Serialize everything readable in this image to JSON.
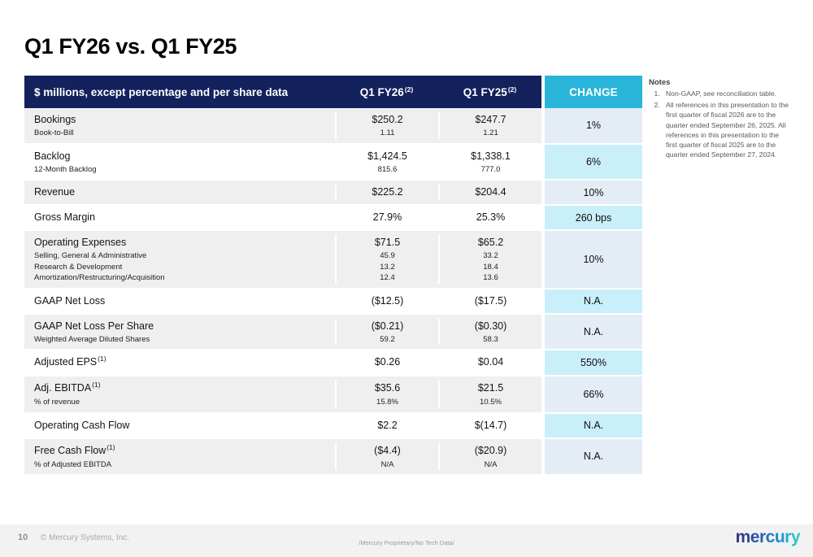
{
  "slide": {
    "title": "Q1 FY26 vs. Q1 FY25",
    "page_number": "10",
    "copyright": "© Mercury Systems, Inc.",
    "classification": "/Mercury Proprietary/No Tech Data/",
    "logo_text": "mercury"
  },
  "colors": {
    "header_navy": "#13215c",
    "accent_cyan": "#29b5d9",
    "change_cyan_cell": "#c9effa",
    "change_light_cell": "#e4ecf5",
    "row_gray": "#f0eff0",
    "footer_band": "#f2f2f2"
  },
  "table": {
    "header": {
      "label": "$ millions, except percentage and per share data",
      "col1": "Q1 FY26",
      "col1_sup": "(2)",
      "col2": "Q1 FY25",
      "col2_sup": "(2)",
      "change": "CHANGE"
    },
    "rows": [
      {
        "label": "Bookings",
        "sup": "",
        "fy26": "$250.2",
        "fy25": "$247.7",
        "change": "1%",
        "row_shade": "gray",
        "change_shade": "light",
        "subs": [
          {
            "label": "Book-to-Bill",
            "fy26": "1.11",
            "fy25": "1.21"
          }
        ]
      },
      {
        "label": "Backlog",
        "sup": "",
        "fy26": "$1,424.5",
        "fy25": "$1,338.1",
        "change": "6%",
        "row_shade": "white",
        "change_shade": "cyan",
        "subs": [
          {
            "label": "12-Month Backlog",
            "fy26": "815.6",
            "fy25": "777.0"
          }
        ]
      },
      {
        "label": "Revenue",
        "sup": "",
        "fy26": "$225.2",
        "fy25": "$204.4",
        "change": "10%",
        "row_shade": "gray",
        "change_shade": "light",
        "subs": []
      },
      {
        "label": "Gross Margin",
        "sup": "",
        "fy26": "27.9%",
        "fy25": "25.3%",
        "change": "260 bps",
        "row_shade": "white",
        "change_shade": "cyan",
        "subs": []
      },
      {
        "label": "Operating Expenses",
        "sup": "",
        "fy26": "$71.5",
        "fy25": "$65.2",
        "change": "10%",
        "row_shade": "gray",
        "change_shade": "light",
        "subs": [
          {
            "label": "Selling, General & Administrative",
            "fy26": "45.9",
            "fy25": "33.2"
          },
          {
            "label": "Research & Development",
            "fy26": "13.2",
            "fy25": "18.4"
          },
          {
            "label": "Amortization/Restructuring/Acquisition",
            "fy26": "12.4",
            "fy25": "13.6"
          }
        ]
      },
      {
        "label": "GAAP Net Loss",
        "sup": "",
        "fy26": "($12.5)",
        "fy25": "($17.5)",
        "change": "N.A.",
        "row_shade": "white",
        "change_shade": "cyan",
        "subs": []
      },
      {
        "label": "GAAP Net Loss Per Share",
        "sup": "",
        "fy26": "($0.21)",
        "fy25": "($0.30)",
        "change": "N.A.",
        "row_shade": "gray",
        "change_shade": "light",
        "subs": [
          {
            "label": "Weighted Average Diluted Shares",
            "fy26": "59.2",
            "fy25": "58.3"
          }
        ]
      },
      {
        "label": "Adjusted EPS",
        "sup": "(1)",
        "fy26": "$0.26",
        "fy25": "$0.04",
        "change": "550%",
        "row_shade": "white",
        "change_shade": "cyan",
        "subs": []
      },
      {
        "label": "Adj. EBITDA",
        "sup": "(1)",
        "fy26": "$35.6",
        "fy25": "$21.5",
        "change": "66%",
        "row_shade": "gray",
        "change_shade": "light",
        "subs": [
          {
            "label": "% of revenue",
            "fy26": "15.8%",
            "fy25": "10.5%"
          }
        ]
      },
      {
        "label": "Operating Cash Flow",
        "sup": "",
        "fy26": "$2.2",
        "fy25": "$(14.7)",
        "change": "N.A.",
        "row_shade": "white",
        "change_shade": "cyan",
        "subs": []
      },
      {
        "label": "Free Cash Flow",
        "sup": "(1)",
        "fy26": "($4.4)",
        "fy25": "($20.9)",
        "change": "N.A.",
        "row_shade": "gray",
        "change_shade": "light",
        "subs": [
          {
            "label": "% of Adjusted EBITDA",
            "fy26": "N/A",
            "fy25": "N/A"
          }
        ]
      }
    ]
  },
  "notes": {
    "heading": "Notes",
    "items": [
      "Non-GAAP, see reconciliation table.",
      "All references in this presentation to the first quarter of fiscal 2026 are to the quarter ended September 26, 2025. All references in this presentation to the first quarter of fiscal 2025 are to the quarter ended September 27, 2024."
    ]
  }
}
